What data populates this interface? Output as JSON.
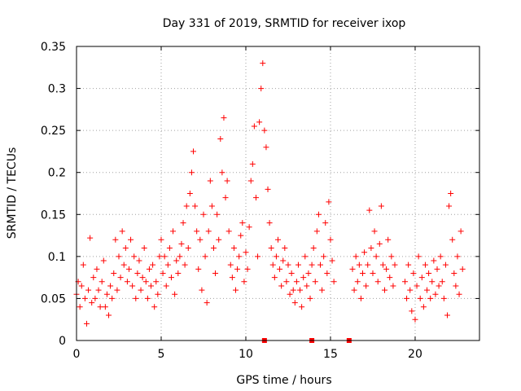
{
  "chart_data": {
    "type": "scatter",
    "title": "Day 331 of 2019, SRMTID for receiver ixop",
    "xlabel": "GPS time / hours",
    "ylabel": "SRMTID / TECUs",
    "xlim": [
      0,
      23.8
    ],
    "ylim": [
      0,
      0.35
    ],
    "xticks": [
      0,
      5,
      10,
      15,
      20
    ],
    "xtick_labels": [
      "0",
      "5",
      "10",
      "15",
      "20"
    ],
    "yticks": [
      0,
      0.05,
      0.1,
      0.15,
      0.2,
      0.25,
      0.3,
      0.35
    ],
    "ytick_labels": [
      "0",
      "0.05",
      "0.1",
      "0.15",
      "0.2",
      "0.25",
      "0.3",
      "0.35"
    ],
    "grid": true,
    "marker": "+",
    "color": "#ff0000",
    "data_gaps_hours": [
      [
        15.4,
        16.2
      ],
      [
        18.9,
        19.3
      ]
    ],
    "series": [
      {
        "name": "SRMTID",
        "points": [
          [
            0.0,
            0.055
          ],
          [
            0.1,
            0.07
          ],
          [
            0.2,
            0.04
          ],
          [
            0.3,
            0.065
          ],
          [
            0.4,
            0.09
          ],
          [
            0.5,
            0.05
          ],
          [
            0.6,
            0.02
          ],
          [
            0.7,
            0.06
          ],
          [
            0.8,
            0.122
          ],
          [
            0.9,
            0.045
          ],
          [
            1.0,
            0.075
          ],
          [
            1.1,
            0.05
          ],
          [
            1.2,
            0.085
          ],
          [
            1.3,
            0.06
          ],
          [
            1.4,
            0.04
          ],
          [
            1.5,
            0.07
          ],
          [
            1.6,
            0.095
          ],
          [
            1.7,
            0.04
          ],
          [
            1.8,
            0.055
          ],
          [
            1.9,
            0.03
          ],
          [
            2.0,
            0.065
          ],
          [
            2.1,
            0.05
          ],
          [
            2.2,
            0.08
          ],
          [
            2.3,
            0.12
          ],
          [
            2.4,
            0.06
          ],
          [
            2.5,
            0.1
          ],
          [
            2.6,
            0.075
          ],
          [
            2.7,
            0.13
          ],
          [
            2.8,
            0.09
          ],
          [
            2.9,
            0.11
          ],
          [
            3.0,
            0.07
          ],
          [
            3.1,
            0.085
          ],
          [
            3.2,
            0.12
          ],
          [
            3.3,
            0.065
          ],
          [
            3.4,
            0.1
          ],
          [
            3.5,
            0.05
          ],
          [
            3.6,
            0.08
          ],
          [
            3.7,
            0.095
          ],
          [
            3.8,
            0.06
          ],
          [
            3.9,
            0.075
          ],
          [
            4.0,
            0.11
          ],
          [
            4.1,
            0.07
          ],
          [
            4.2,
            0.05
          ],
          [
            4.3,
            0.085
          ],
          [
            4.4,
            0.065
          ],
          [
            4.5,
            0.09
          ],
          [
            4.6,
            0.04
          ],
          [
            4.7,
            0.07
          ],
          [
            4.8,
            0.055
          ],
          [
            4.9,
            0.1
          ],
          [
            5.0,
            0.12
          ],
          [
            5.1,
            0.08
          ],
          [
            5.2,
            0.1
          ],
          [
            5.3,
            0.065
          ],
          [
            5.4,
            0.09
          ],
          [
            5.5,
            0.11
          ],
          [
            5.6,
            0.075
          ],
          [
            5.7,
            0.13
          ],
          [
            5.8,
            0.055
          ],
          [
            5.9,
            0.095
          ],
          [
            6.0,
            0.08
          ],
          [
            6.1,
            0.1
          ],
          [
            6.2,
            0.115
          ],
          [
            6.3,
            0.14
          ],
          [
            6.4,
            0.09
          ],
          [
            6.5,
            0.16
          ],
          [
            6.6,
            0.11
          ],
          [
            6.7,
            0.175
          ],
          [
            6.8,
            0.2
          ],
          [
            6.9,
            0.225
          ],
          [
            7.0,
            0.16
          ],
          [
            7.1,
            0.13
          ],
          [
            7.2,
            0.085
          ],
          [
            7.3,
            0.12
          ],
          [
            7.4,
            0.06
          ],
          [
            7.5,
            0.15
          ],
          [
            7.6,
            0.1
          ],
          [
            7.7,
            0.045
          ],
          [
            7.8,
            0.13
          ],
          [
            7.9,
            0.19
          ],
          [
            8.0,
            0.16
          ],
          [
            8.1,
            0.11
          ],
          [
            8.2,
            0.08
          ],
          [
            8.3,
            0.15
          ],
          [
            8.4,
            0.12
          ],
          [
            8.5,
            0.24
          ],
          [
            8.6,
            0.2
          ],
          [
            8.7,
            0.265
          ],
          [
            8.8,
            0.17
          ],
          [
            8.9,
            0.19
          ],
          [
            9.0,
            0.13
          ],
          [
            9.1,
            0.09
          ],
          [
            9.2,
            0.075
          ],
          [
            9.3,
            0.11
          ],
          [
            9.4,
            0.06
          ],
          [
            9.5,
            0.085
          ],
          [
            9.6,
            0.1
          ],
          [
            9.7,
            0.125
          ],
          [
            9.8,
            0.14
          ],
          [
            9.9,
            0.07
          ],
          [
            10.0,
            0.105
          ],
          [
            10.1,
            0.085
          ],
          [
            10.2,
            0.135
          ],
          [
            10.3,
            0.19
          ],
          [
            10.4,
            0.21
          ],
          [
            10.5,
            0.255
          ],
          [
            10.6,
            0.17
          ],
          [
            10.7,
            0.1
          ],
          [
            10.8,
            0.26
          ],
          [
            10.9,
            0.3
          ],
          [
            11.0,
            0.33
          ],
          [
            11.1,
            0.25
          ],
          [
            11.2,
            0.23
          ],
          [
            11.3,
            0.18
          ],
          [
            11.4,
            0.14
          ],
          [
            11.5,
            0.11
          ],
          [
            11.6,
            0.09
          ],
          [
            11.7,
            0.075
          ],
          [
            11.8,
            0.1
          ],
          [
            11.9,
            0.12
          ],
          [
            12.0,
            0.085
          ],
          [
            12.1,
            0.065
          ],
          [
            12.2,
            0.095
          ],
          [
            12.3,
            0.11
          ],
          [
            12.4,
            0.07
          ],
          [
            12.5,
            0.09
          ],
          [
            12.6,
            0.055
          ],
          [
            12.7,
            0.08
          ],
          [
            12.8,
            0.06
          ],
          [
            12.9,
            0.045
          ],
          [
            13.0,
            0.07
          ],
          [
            13.1,
            0.09
          ],
          [
            13.2,
            0.06
          ],
          [
            13.3,
            0.04
          ],
          [
            13.4,
            0.075
          ],
          [
            13.5,
            0.1
          ],
          [
            13.6,
            0.065
          ],
          [
            13.7,
            0.08
          ],
          [
            13.8,
            0.05
          ],
          [
            13.9,
            0.09
          ],
          [
            14.0,
            0.11
          ],
          [
            14.1,
            0.07
          ],
          [
            14.2,
            0.13
          ],
          [
            14.3,
            0.15
          ],
          [
            14.4,
            0.09
          ],
          [
            14.5,
            0.06
          ],
          [
            14.6,
            0.1
          ],
          [
            14.7,
            0.14
          ],
          [
            14.8,
            0.08
          ],
          [
            14.9,
            0.165
          ],
          [
            15.0,
            0.12
          ],
          [
            15.1,
            0.095
          ],
          [
            15.2,
            0.07
          ],
          [
            16.3,
            0.085
          ],
          [
            16.4,
            0.06
          ],
          [
            16.5,
            0.1
          ],
          [
            16.6,
            0.07
          ],
          [
            16.7,
            0.09
          ],
          [
            16.8,
            0.05
          ],
          [
            16.9,
            0.08
          ],
          [
            17.0,
            0.105
          ],
          [
            17.1,
            0.065
          ],
          [
            17.2,
            0.09
          ],
          [
            17.3,
            0.155
          ],
          [
            17.4,
            0.11
          ],
          [
            17.5,
            0.08
          ],
          [
            17.6,
            0.13
          ],
          [
            17.7,
            0.1
          ],
          [
            17.8,
            0.07
          ],
          [
            17.9,
            0.115
          ],
          [
            18.0,
            0.16
          ],
          [
            18.1,
            0.09
          ],
          [
            18.2,
            0.06
          ],
          [
            18.3,
            0.085
          ],
          [
            18.4,
            0.12
          ],
          [
            18.5,
            0.075
          ],
          [
            18.6,
            0.1
          ],
          [
            18.7,
            0.065
          ],
          [
            18.8,
            0.09
          ],
          [
            19.4,
            0.07
          ],
          [
            19.5,
            0.05
          ],
          [
            19.6,
            0.09
          ],
          [
            19.7,
            0.06
          ],
          [
            19.8,
            0.035
          ],
          [
            19.9,
            0.08
          ],
          [
            20.0,
            0.025
          ],
          [
            20.1,
            0.065
          ],
          [
            20.2,
            0.1
          ],
          [
            20.3,
            0.05
          ],
          [
            20.4,
            0.075
          ],
          [
            20.5,
            0.04
          ],
          [
            20.6,
            0.09
          ],
          [
            20.7,
            0.06
          ],
          [
            20.8,
            0.08
          ],
          [
            20.9,
            0.05
          ],
          [
            21.0,
            0.07
          ],
          [
            21.1,
            0.095
          ],
          [
            21.2,
            0.055
          ],
          [
            21.3,
            0.085
          ],
          [
            21.4,
            0.065
          ],
          [
            21.5,
            0.1
          ],
          [
            21.6,
            0.07
          ],
          [
            21.7,
            0.05
          ],
          [
            21.8,
            0.09
          ],
          [
            21.9,
            0.03
          ],
          [
            22.0,
            0.16
          ],
          [
            22.1,
            0.175
          ],
          [
            22.2,
            0.12
          ],
          [
            22.3,
            0.08
          ],
          [
            22.4,
            0.065
          ],
          [
            22.5,
            0.1
          ],
          [
            22.6,
            0.055
          ],
          [
            22.7,
            0.13
          ],
          [
            22.8,
            0.085
          ]
        ]
      }
    ],
    "bottom_markers_hours": [
      11.1,
      13.9,
      16.1
    ]
  }
}
